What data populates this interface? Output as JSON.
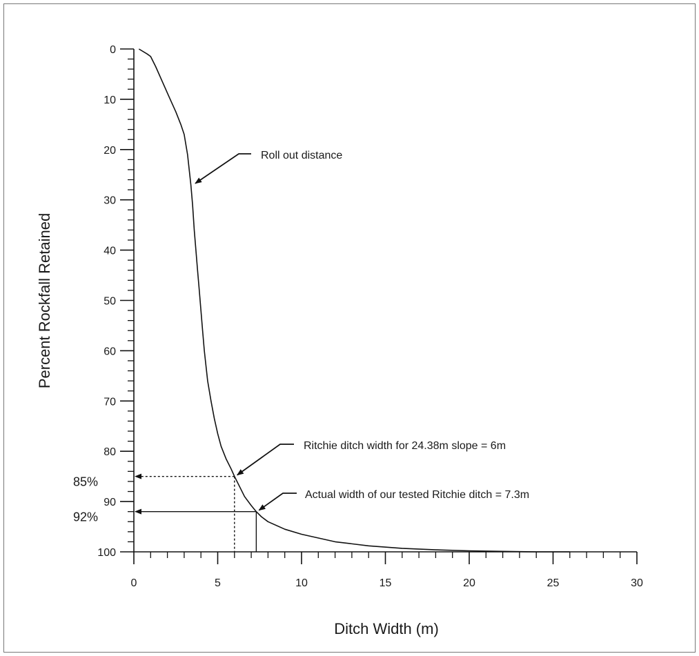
{
  "chart_data": {
    "type": "line",
    "title": "",
    "xlabel": "Ditch Width (m)",
    "ylabel": "Percent Rockfall Retained",
    "xlim": [
      0,
      30
    ],
    "ylim": [
      0,
      100
    ],
    "y_inverted": true,
    "grid": false,
    "x_ticks": [
      0,
      5,
      10,
      15,
      20,
      25,
      30
    ],
    "y_ticks": [
      0,
      10,
      20,
      30,
      40,
      50,
      60,
      70,
      80,
      90,
      100
    ],
    "series": [
      {
        "x": [
          0.3,
          0.8,
          1.0,
          1.3,
          1.7,
          2.1,
          2.5,
          2.8,
          3.0,
          3.2,
          3.3,
          3.4,
          3.5,
          3.6,
          3.7,
          3.8,
          3.9,
          4.0,
          4.1,
          4.2,
          4.3,
          4.4,
          4.6,
          4.8,
          5.0,
          5.2,
          5.5,
          5.8,
          6.0,
          6.3,
          6.6,
          7.0,
          7.3,
          7.6,
          8.0,
          9.0,
          10.0,
          12.0,
          14.0,
          16.0,
          18.0,
          20.0,
          22.0,
          24.0,
          26.0
        ],
        "y": [
          0,
          1,
          1.5,
          3.5,
          6.5,
          9.5,
          12.5,
          15,
          17,
          21,
          24,
          27,
          31,
          36,
          40,
          44,
          48,
          52,
          56,
          60,
          63,
          66,
          70,
          73.5,
          76.5,
          79,
          81.5,
          83.5,
          85,
          87,
          89,
          90.8,
          92,
          93,
          94,
          95.5,
          96.5,
          98,
          98.8,
          99.3,
          99.6,
          99.8,
          99.9,
          100,
          100
        ]
      }
    ],
    "reference_points": [
      {
        "x": 6,
        "y": 85,
        "percent_label": "85%",
        "line_style": "dashed"
      },
      {
        "x": 7.3,
        "y": 92,
        "percent_label": "92%",
        "line_style": "solid"
      }
    ],
    "annotations": [
      {
        "text": "Roll out distance",
        "x": 3.5,
        "y": 27
      },
      {
        "text": "Ritchie ditch width for 24.38m slope = 6m",
        "x": 6,
        "y": 85
      },
      {
        "text": "Actual width of our tested Ritchie ditch = 7.3m",
        "x": 7.3,
        "y": 92
      }
    ]
  }
}
